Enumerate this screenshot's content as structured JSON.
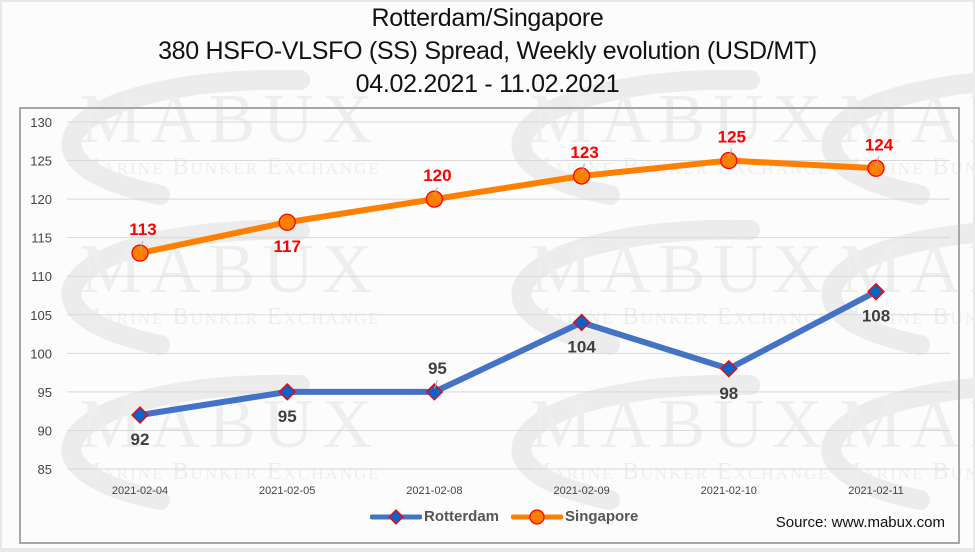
{
  "chart_data": {
    "type": "line",
    "title": "Rotterdam/Singapore",
    "subtitle": "380 HSFO-VLSFO (SS) Spread, Weekly evolution (USD/MT)",
    "date_range": "04.02.2021 - 11.02.2021",
    "xlabel": "",
    "ylabel": "",
    "categories": [
      "2021-02-04",
      "2021-02-05",
      "2021-02-08",
      "2021-02-09",
      "2021-02-10",
      "2021-02-11"
    ],
    "ylim": [
      85,
      130
    ],
    "yticks": [
      85,
      90,
      95,
      100,
      105,
      110,
      115,
      120,
      125,
      130
    ],
    "grid": true,
    "legend_position": "bottom",
    "series": [
      {
        "name": "Rotterdam",
        "values": [
          92,
          95,
          95,
          104,
          98,
          108
        ],
        "label_positions": [
          "below",
          "below",
          "above",
          "below",
          "below",
          "below"
        ],
        "line_color": "#4472c4",
        "marker": "diamond",
        "marker_fill": "#0a64c8",
        "marker_edge": "#ff0000",
        "label_color": "#404040"
      },
      {
        "name": "Singapore",
        "values": [
          113,
          117,
          120,
          123,
          125,
          124
        ],
        "label_positions": [
          "above",
          "below",
          "above",
          "above",
          "above",
          "above"
        ],
        "line_color": "#ff7f00",
        "marker": "circle",
        "marker_fill": "#ff7f00",
        "marker_edge": "#ff0000",
        "label_color": "#ff0000"
      }
    ]
  },
  "source_text": "Source: www.mabux.com",
  "watermark": {
    "logo": "MABUX",
    "tagline": "Marine Bunker Exchange"
  }
}
